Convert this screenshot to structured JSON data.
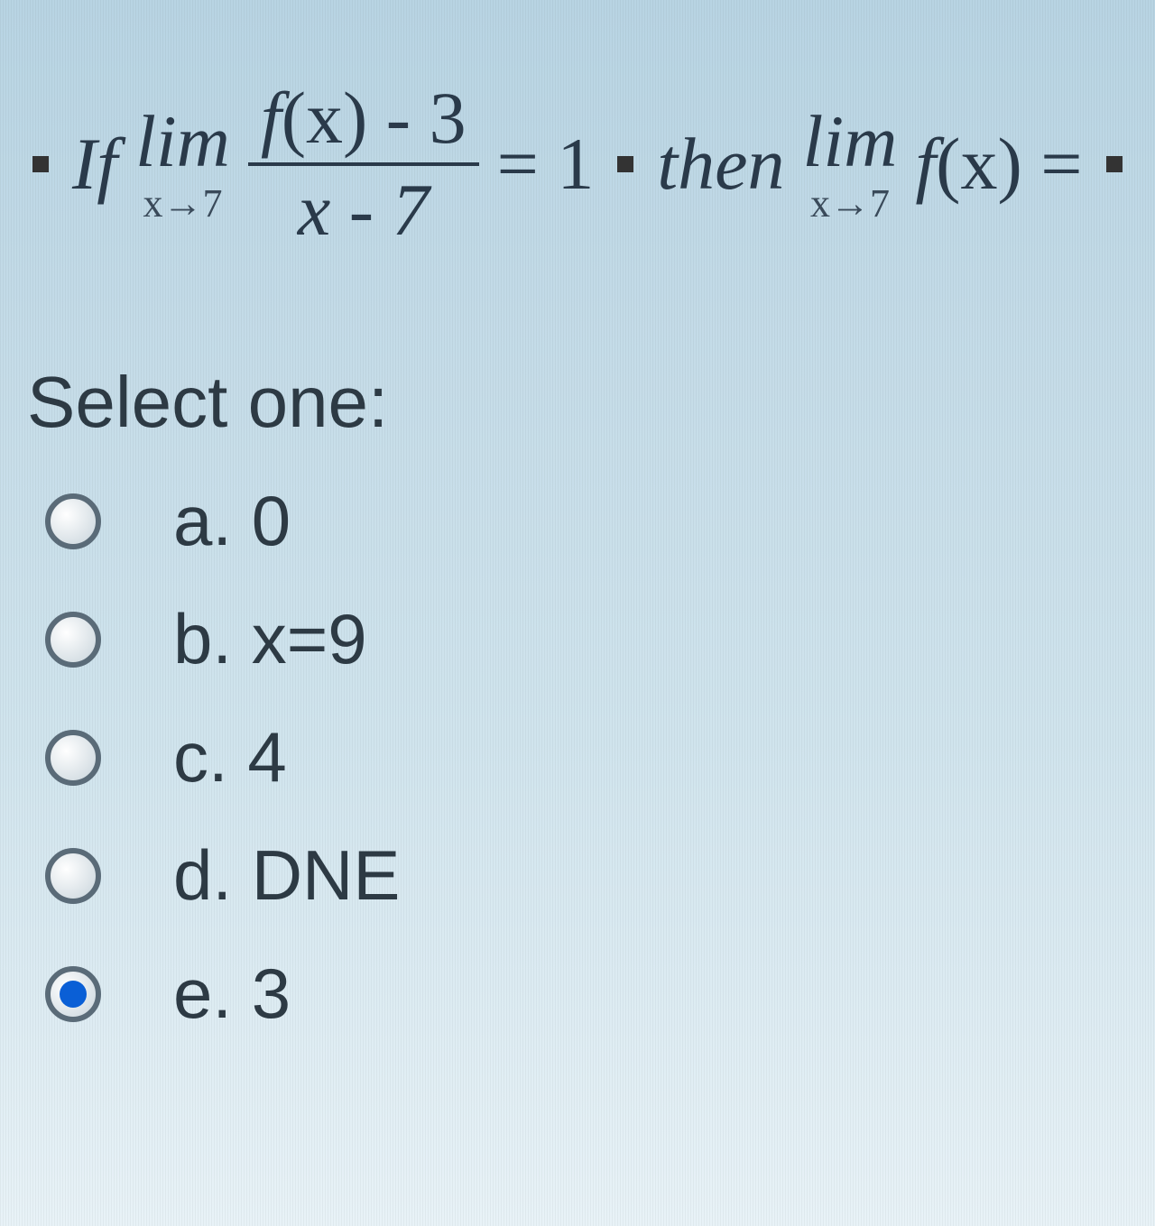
{
  "question": {
    "if_text": "If",
    "lim_text": "lim",
    "lim1_sub": "x→7",
    "frac_top_f": "f",
    "frac_top_rest": "(x) - 3",
    "frac_bot": "x - 7",
    "equals1": "= 1",
    "then_text": "then",
    "lim2_sub": "x→7",
    "fx_f": "f",
    "fx_rest": "(x) =",
    "colors": {
      "text": "#2a3a4a",
      "handle": "#333333",
      "bg_top": "#b8d4e3",
      "bg_bottom": "#e8f2f7"
    }
  },
  "select_label": "Select one:",
  "options": [
    {
      "label": "a. 0",
      "selected": false
    },
    {
      "label": "b. x=9",
      "selected": false
    },
    {
      "label": "c. 4",
      "selected": false
    },
    {
      "label": "d. DNE",
      "selected": false
    },
    {
      "label": "e. 3",
      "selected": true
    }
  ],
  "styling": {
    "radio_border": "#5a6b78",
    "radio_fill": "#0a5fd6",
    "option_fontsize": 78,
    "title_fontsize": 80,
    "math_fontsize": 82
  }
}
